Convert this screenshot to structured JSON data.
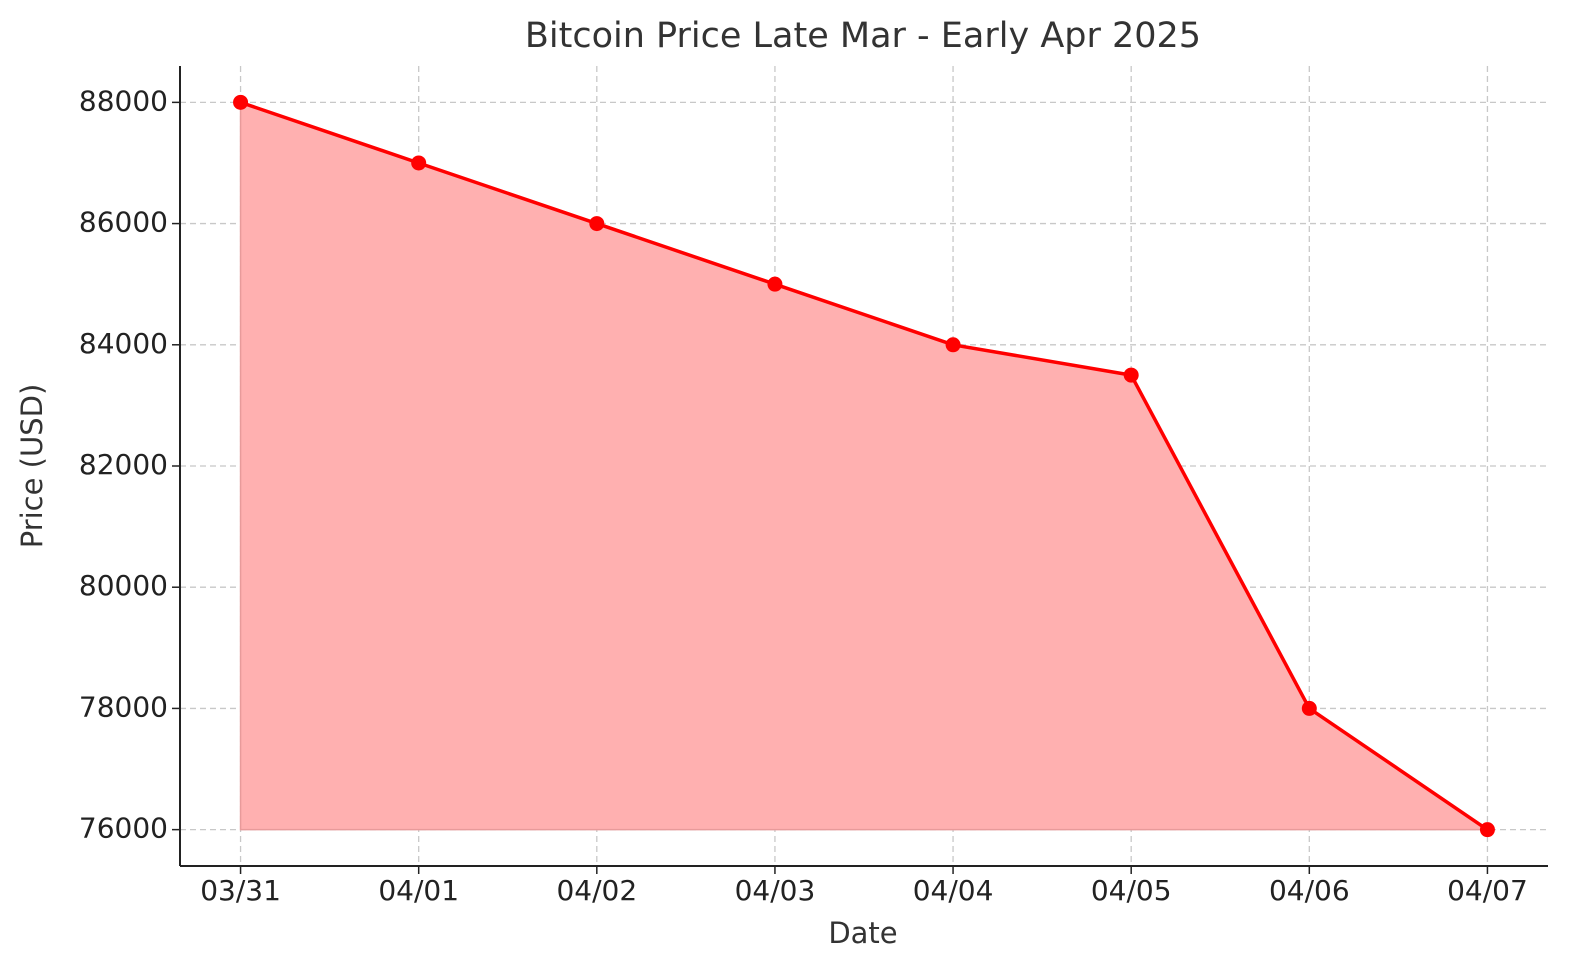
{
  "chart_data": {
    "type": "area",
    "title": "Bitcoin Price Late Mar - Early Apr 2025",
    "x_label": "Date",
    "y_label": "Price (USD)",
    "categories": [
      "03/31",
      "04/01",
      "04/02",
      "04/03",
      "04/04",
      "04/05",
      "04/06",
      "04/07"
    ],
    "values": [
      88000,
      87000,
      86000,
      85000,
      84000,
      83500,
      78000,
      76000
    ],
    "color": "#ff0000",
    "fill_color": "#ffb0b0",
    "ylim": [
      75400,
      88600
    ],
    "yticks": [
      76000,
      78000,
      80000,
      82000,
      84000,
      86000,
      88000
    ],
    "grid": true
  }
}
